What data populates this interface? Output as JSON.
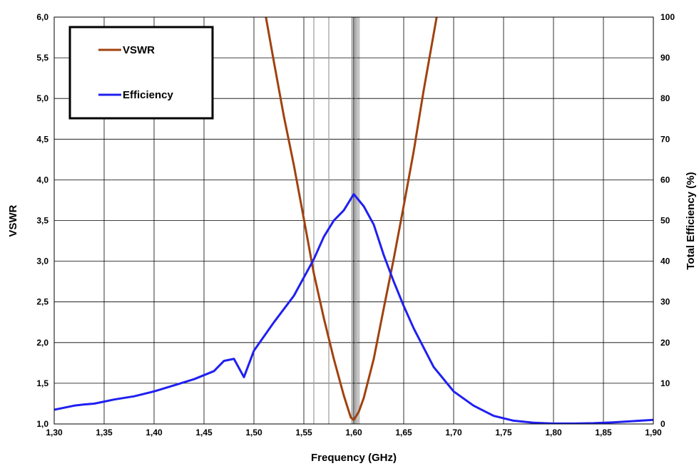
{
  "chart_data": {
    "type": "line",
    "xlabel": "Frequency (GHz)",
    "ylabel": "VSWR",
    "y2label": "Total Efficiency (%)",
    "xlim": [
      1.3,
      1.9
    ],
    "ylim": [
      1.0,
      6.0
    ],
    "y2lim": [
      0,
      100
    ],
    "grid": true,
    "legend": "top-left",
    "x_tick_labels": [
      "1,30",
      "1,35",
      "1,40",
      "1,45",
      "1,50",
      "1,55",
      "1,60",
      "1,65",
      "1,70",
      "1,75",
      "1,80",
      "1,85",
      "1,90"
    ],
    "y_tick_labels": [
      "1,0",
      "1,5",
      "2,0",
      "2,5",
      "3,0",
      "3,5",
      "4,0",
      "4,5",
      "5,0",
      "5,5",
      "6,0"
    ],
    "y2_tick_labels": [
      "0",
      "10",
      "20",
      "30",
      "40",
      "50",
      "60",
      "70",
      "80",
      "90",
      "100"
    ],
    "band_markers": [
      1.56,
      1.575,
      1.598,
      1.602
    ],
    "shaded_band": [
      1.598,
      1.606
    ],
    "series": [
      {
        "name": "VSWR",
        "axis": "left",
        "color": "#a0420f",
        "x": [
          1.512,
          1.52,
          1.53,
          1.54,
          1.55,
          1.56,
          1.57,
          1.58,
          1.59,
          1.597,
          1.6,
          1.605,
          1.61,
          1.62,
          1.63,
          1.64,
          1.65,
          1.66,
          1.67,
          1.683
        ],
        "values": [
          6.0,
          5.45,
          4.78,
          4.18,
          3.52,
          2.85,
          2.3,
          1.8,
          1.35,
          1.08,
          1.05,
          1.15,
          1.32,
          1.8,
          2.42,
          3.03,
          3.68,
          4.35,
          5.1,
          6.0
        ]
      },
      {
        "name": "Efficiency",
        "axis": "right",
        "color": "#1f1ff2",
        "x": [
          1.3,
          1.31,
          1.32,
          1.33,
          1.34,
          1.35,
          1.36,
          1.38,
          1.4,
          1.42,
          1.44,
          1.46,
          1.47,
          1.48,
          1.49,
          1.5,
          1.52,
          1.54,
          1.56,
          1.57,
          1.58,
          1.59,
          1.6,
          1.61,
          1.62,
          1.63,
          1.64,
          1.65,
          1.66,
          1.68,
          1.7,
          1.72,
          1.74,
          1.76,
          1.78,
          1.8,
          1.82,
          1.84,
          1.86,
          1.88,
          1.9
        ],
        "values": [
          3.5,
          4.0,
          4.5,
          4.8,
          5.0,
          5.5,
          6.0,
          6.8,
          8.0,
          9.5,
          11.0,
          13.0,
          15.5,
          16.0,
          11.5,
          18.0,
          25.0,
          31.5,
          40.5,
          46.0,
          50.0,
          52.5,
          56.5,
          53.5,
          49.0,
          41.5,
          35.0,
          29.0,
          23.5,
          14.0,
          8.0,
          4.5,
          2.0,
          0.8,
          0.3,
          0.1,
          0.1,
          0.2,
          0.4,
          0.7,
          1.0
        ]
      }
    ]
  }
}
